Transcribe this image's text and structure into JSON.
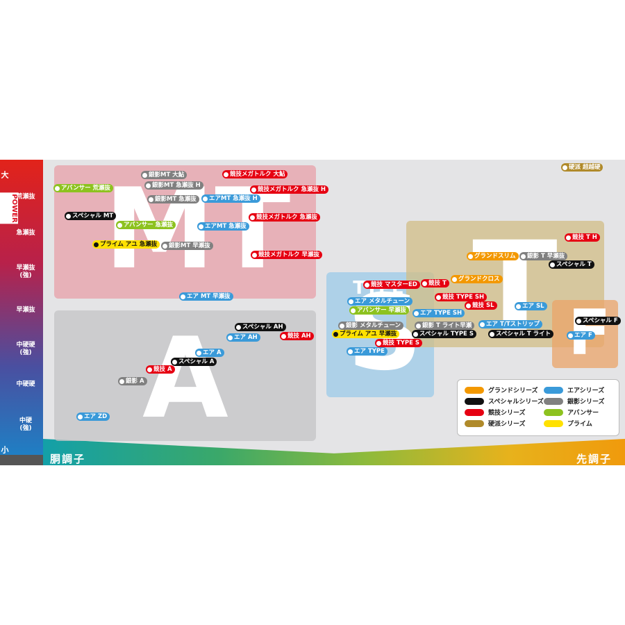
{
  "y_axis": {
    "top": "大",
    "title": "POWER",
    "bottom": "小",
    "labels": [
      "荒瀬抜",
      "急瀬抜",
      "早瀬抜\n(強)",
      "早瀬抜",
      "中硬硬\n(強)",
      "中硬硬",
      "中硬\n(強)"
    ]
  },
  "x_axis": {
    "left": "胴調子",
    "right": "先調子"
  },
  "regions": [
    {
      "letter": "MT",
      "color": "#e8a0a8"
    },
    {
      "letter": "A",
      "color": "#c4c4c6"
    },
    {
      "small": "TYPE",
      "letter": "S",
      "color": "#9ccbe8"
    },
    {
      "letter": "T",
      "color": "#d2be86"
    },
    {
      "letter": "F",
      "color": "#eba468"
    }
  ],
  "legend": [
    {
      "name": "グランドシリーズ",
      "color": "#f39800"
    },
    {
      "name": "エアシリーズ",
      "color": "#3a9ad9"
    },
    {
      "name": "スペシャルシリーズ",
      "color": "#111111"
    },
    {
      "name": "銀影シリーズ",
      "color": "#808080"
    },
    {
      "name": "競技シリーズ",
      "color": "#e60012"
    },
    {
      "name": "アバンサー",
      "color": "#8dc21f"
    },
    {
      "name": "硬派シリーズ",
      "color": "#b08a2a"
    },
    {
      "name": "プライム",
      "color": "#ffe100"
    }
  ],
  "tags": [
    {
      "label": "銀影MT 大鮎",
      "color": "#808080"
    },
    {
      "label": "競技メガトルク 大鮎",
      "color": "#e60012"
    },
    {
      "label": "アバンサー 荒瀬抜",
      "color": "#8dc21f"
    },
    {
      "label": "銀影MT 急瀬抜 H",
      "color": "#808080"
    },
    {
      "label": "競技メガトルク 急瀬抜 H",
      "color": "#e60012"
    },
    {
      "label": "銀影MT 急瀬抜",
      "color": "#808080"
    },
    {
      "label": "エアMT 急瀬抜 H",
      "color": "#3a9ad9"
    },
    {
      "label": "スペシャル MT",
      "color": "#111111"
    },
    {
      "label": "アバンサー 急瀬抜",
      "color": "#8dc21f"
    },
    {
      "label": "エアMT 急瀬抜",
      "color": "#3a9ad9"
    },
    {
      "label": "競技メガトルク 急瀬抜",
      "color": "#e60012"
    },
    {
      "label": "プライム アユ 急瀬抜",
      "color": "#ffe100"
    },
    {
      "label": "銀影MT 早瀬抜",
      "color": "#808080"
    },
    {
      "label": "競技メガトルク 早瀬抜",
      "color": "#e60012"
    },
    {
      "label": "エア MT 早瀬抜",
      "color": "#3a9ad9"
    },
    {
      "label": "硬派 超越硬",
      "color": "#b08a2a"
    },
    {
      "label": "競技 T H",
      "color": "#e60012"
    },
    {
      "label": "グランドスリム",
      "color": "#f39800"
    },
    {
      "label": "銀影 T 早瀬抜",
      "color": "#808080"
    },
    {
      "label": "スペシャル T",
      "color": "#111111"
    },
    {
      "label": "グランドクロス",
      "color": "#f39800"
    },
    {
      "label": "競技 マスターED",
      "color": "#e60012"
    },
    {
      "label": "競技 T",
      "color": "#e60012"
    },
    {
      "label": "競技 TYPE SH",
      "color": "#e60012"
    },
    {
      "label": "競技 SL",
      "color": "#e60012"
    },
    {
      "label": "エア SL",
      "color": "#3a9ad9"
    },
    {
      "label": "エア メタルチューン",
      "color": "#3a9ad9"
    },
    {
      "label": "アバンサー 早瀬抜",
      "color": "#8dc21f"
    },
    {
      "label": "エア TYPE SH",
      "color": "#3a9ad9"
    },
    {
      "label": "スペシャル F",
      "color": "#111111"
    },
    {
      "label": "銀影 メタルチューン",
      "color": "#808080"
    },
    {
      "label": "銀影 T ライト早瀬",
      "color": "#808080"
    },
    {
      "label": "エア T/Tストリップ",
      "color": "#3a9ad9"
    },
    {
      "label": "スペシャル AH",
      "color": "#111111"
    },
    {
      "label": "エア AH",
      "color": "#3a9ad9"
    },
    {
      "label": "競技 AH",
      "color": "#e60012"
    },
    {
      "label": "プライム アユ 早瀬抜",
      "color": "#ffe100"
    },
    {
      "label": "スペシャル TYPE S",
      "color": "#111111"
    },
    {
      "label": "スペシャル T ライト",
      "color": "#111111"
    },
    {
      "label": "エア F",
      "color": "#3a9ad9"
    },
    {
      "label": "競技 TYPE S",
      "color": "#e60012"
    },
    {
      "label": "エア A",
      "color": "#3a9ad9"
    },
    {
      "label": "エア TYPE",
      "color": "#3a9ad9"
    },
    {
      "label": "スペシャル A",
      "color": "#111111"
    },
    {
      "label": "競技 A",
      "color": "#e60012"
    },
    {
      "label": "銀影 A",
      "color": "#808080"
    },
    {
      "label": "エア ZD",
      "color": "#3a9ad9"
    }
  ]
}
